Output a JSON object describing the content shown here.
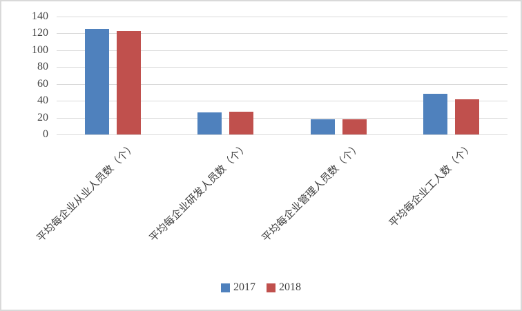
{
  "chart_data": {
    "type": "bar",
    "title": "",
    "xlabel": "",
    "ylabel": "",
    "categories": [
      "平均每企业从业人员数（个）",
      "平均每企业研发人员数（个）",
      "平均每企业管理人员数（个）",
      "平均每企业工人数（个）"
    ],
    "series": [
      {
        "name": "2017",
        "color": "#4F81BD",
        "values": [
          125,
          26,
          18,
          48
        ]
      },
      {
        "name": "2018",
        "color": "#C0504D",
        "values": [
          123,
          27,
          18,
          42
        ]
      }
    ],
    "ylim": [
      0,
      140
    ],
    "yticks": [
      0,
      20,
      40,
      60,
      80,
      100,
      120,
      140
    ],
    "grid": true,
    "legend_position": "bottom",
    "bar_orientation": "vertical",
    "category_label_rotation_deg": 45
  },
  "colors": {
    "background": "#ffffff",
    "frame": "#d9d9d9",
    "gridline": "#d9d9d9",
    "axis_text": "#404040"
  }
}
